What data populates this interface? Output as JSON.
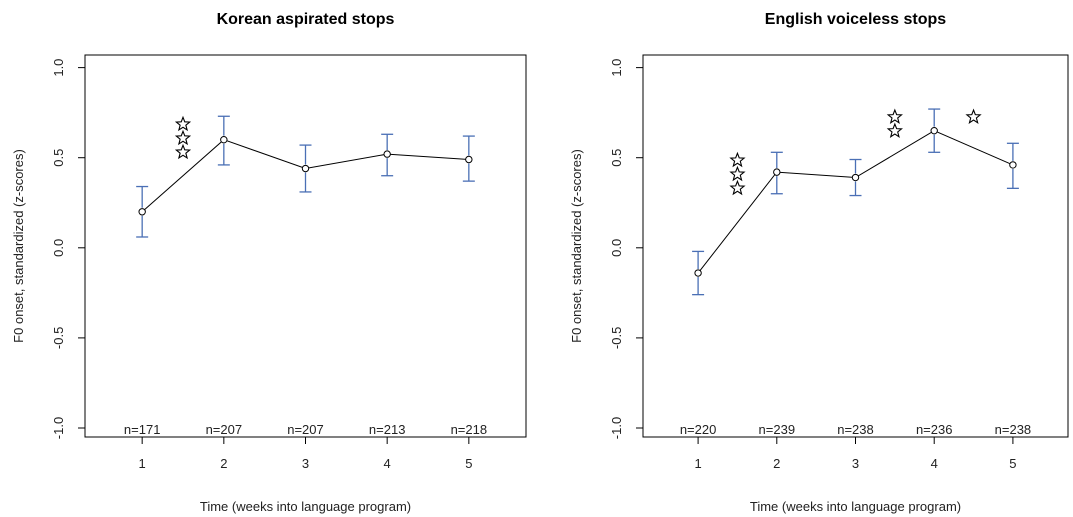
{
  "chart_data": [
    {
      "type": "line",
      "title": "Korean aspirated stops",
      "xlabel": "Time (weeks into language program)",
      "ylabel": "F0 onset, standardized (z-scores)",
      "x": [
        1,
        2,
        3,
        4,
        5
      ],
      "x_ticks": [
        "1",
        "2",
        "3",
        "4",
        "5"
      ],
      "y_ticks": [
        "-1.0",
        "-0.5",
        "0.0",
        "0.5",
        "1.0"
      ],
      "xlim": [
        0.3,
        5.7
      ],
      "ylim": [
        -1.05,
        1.07
      ],
      "values": [
        0.2,
        0.6,
        0.44,
        0.52,
        0.49
      ],
      "error_lower": [
        0.06,
        0.46,
        0.31,
        0.4,
        0.37
      ],
      "error_upper": [
        0.34,
        0.73,
        0.57,
        0.63,
        0.62
      ],
      "n_labels": [
        "n=171",
        "n=207",
        "n=207",
        "n=213",
        "n=218"
      ],
      "significance": [
        {
          "x": 1.5,
          "stars": 3
        }
      ],
      "grid": false,
      "line_color": "#000000",
      "error_color": "#4a6fb5"
    },
    {
      "type": "line",
      "title": "English voiceless stops",
      "xlabel": "Time (weeks into language program)",
      "ylabel": "F0 onset, standardized (z-scores)",
      "x": [
        1,
        2,
        3,
        4,
        5
      ],
      "x_ticks": [
        "1",
        "2",
        "3",
        "4",
        "5"
      ],
      "y_ticks": [
        "-1.0",
        "-0.5",
        "0.0",
        "0.5",
        "1.0"
      ],
      "xlim": [
        0.3,
        5.7
      ],
      "ylim": [
        -1.05,
        1.07
      ],
      "values": [
        -0.14,
        0.42,
        0.39,
        0.65,
        0.46
      ],
      "error_lower": [
        -0.26,
        0.3,
        0.29,
        0.53,
        0.33
      ],
      "error_upper": [
        -0.02,
        0.53,
        0.49,
        0.77,
        0.58
      ],
      "n_labels": [
        "n=220",
        "n=239",
        "n=238",
        "n=236",
        "n=238"
      ],
      "significance": [
        {
          "x": 1.5,
          "stars": 3
        },
        {
          "x": 3.5,
          "stars": 2
        },
        {
          "x": 4.5,
          "stars": 1
        }
      ],
      "grid": false,
      "line_color": "#000000",
      "error_color": "#4a6fb5"
    }
  ]
}
